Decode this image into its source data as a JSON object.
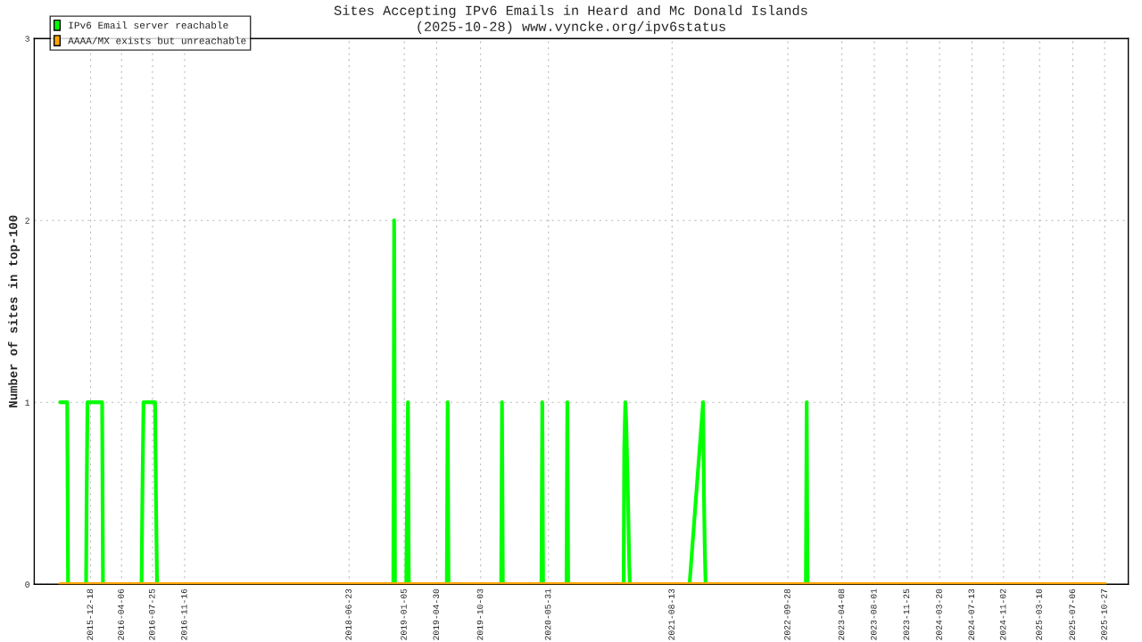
{
  "chart_data": {
    "type": "line",
    "title": "Sites Accepting IPv6 Emails in Heard and Mc Donald Islands",
    "subtitle": "(2025-10-28) www.vyncke.org/ipv6status",
    "ylabel": "Number of sites in top-100",
    "series": [
      {
        "name": "IPv6 Email server reachable",
        "color": "#00ff00",
        "x": [
          "2015-09-01",
          "2015-09-26",
          "2015-09-29",
          "2015-12-02",
          "2015-12-04",
          "2015-12-07",
          "2016-01-28",
          "2016-01-31",
          "2016-06-16",
          "2016-06-19",
          "2016-06-23",
          "2016-08-03",
          "2016-08-06",
          "2016-08-10",
          "2018-11-27",
          "2018-11-30",
          "2018-12-03",
          "2019-01-12",
          "2019-01-15",
          "2019-01-18",
          "2019-01-21",
          "2019-06-05",
          "2019-06-08",
          "2019-06-11",
          "2019-12-15",
          "2019-12-18",
          "2019-12-21",
          "2020-05-06",
          "2020-05-09",
          "2020-05-12",
          "2020-08-03",
          "2020-08-06",
          "2020-08-09",
          "2021-02-22",
          "2021-02-24",
          "2021-02-28",
          "2021-03-03",
          "2021-03-09",
          "2021-03-14",
          "2021-03-16",
          "2021-10-14",
          "2021-12-01",
          "2021-12-04",
          "2021-12-07",
          "2021-12-10",
          "2022-12-01",
          "2022-12-04",
          "2022-12-07",
          "2025-10-28"
        ],
        "values": [
          1,
          1,
          0,
          0,
          0.5,
          1,
          1,
          0,
          0,
          0.5,
          1,
          1,
          0.5,
          0,
          0,
          2,
          0,
          0,
          0.5,
          1,
          0,
          0,
          1,
          0,
          0,
          1,
          0,
          0,
          1,
          0,
          0,
          1,
          0,
          0,
          0.75,
          1,
          0.9,
          0.5,
          0.1,
          0,
          0,
          1,
          0.5,
          0.2,
          0,
          0,
          1,
          0,
          0
        ]
      },
      {
        "name": "AAAA/MX exists but unreachable",
        "color": "#ffa500",
        "x": [
          "2015-09-01",
          "2025-10-28"
        ],
        "values": [
          0,
          0
        ]
      }
    ],
    "xlim": [
      "2015-06-01",
      "2026-01-19"
    ],
    "xticks": [
      "2015-12-18",
      "2016-04-06",
      "2016-07-25",
      "2016-11-16",
      "2018-06-23",
      "2019-01-05",
      "2019-04-30",
      "2019-10-03",
      "2020-05-31",
      "2021-08-13",
      "2022-09-28",
      "2023-04-08",
      "2023-08-01",
      "2023-11-25",
      "2024-03-20",
      "2024-07-13",
      "2024-11-02",
      "2025-03-10",
      "2025-07-06",
      "2025-10-27"
    ],
    "ylim": [
      0,
      3
    ],
    "yticks": [
      0,
      1,
      2,
      3
    ],
    "grid": true,
    "legend": "top left",
    "line_style": "solid",
    "marker": "none"
  }
}
